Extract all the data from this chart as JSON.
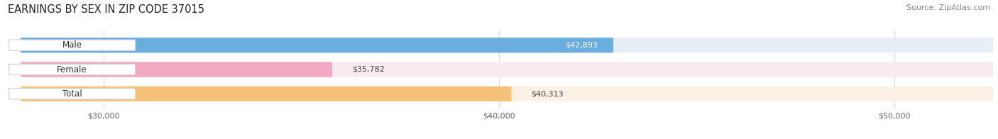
{
  "title": "EARNINGS BY SEX IN ZIP CODE 37015",
  "source": "Source: ZipAtlas.com",
  "categories": [
    "Male",
    "Female",
    "Total"
  ],
  "values": [
    42893,
    35782,
    40313
  ],
  "bar_colors": [
    "#6aaee0",
    "#f2a7c3",
    "#f5c27a"
  ],
  "bar_bg_colors": [
    "#e8eef5",
    "#f9eaf0",
    "#faf0e3"
  ],
  "value_labels": [
    "$42,893",
    "$35,782",
    "$40,313"
  ],
  "value_inside": [
    true,
    false,
    false
  ],
  "xlim_min": 27500,
  "xlim_max": 52500,
  "xticks": [
    30000,
    40000,
    50000
  ],
  "xtick_labels": [
    "$30,000",
    "$40,000",
    "$50,000"
  ],
  "figsize": [
    14.06,
    1.96
  ],
  "dpi": 100,
  "background_color": "#ffffff"
}
